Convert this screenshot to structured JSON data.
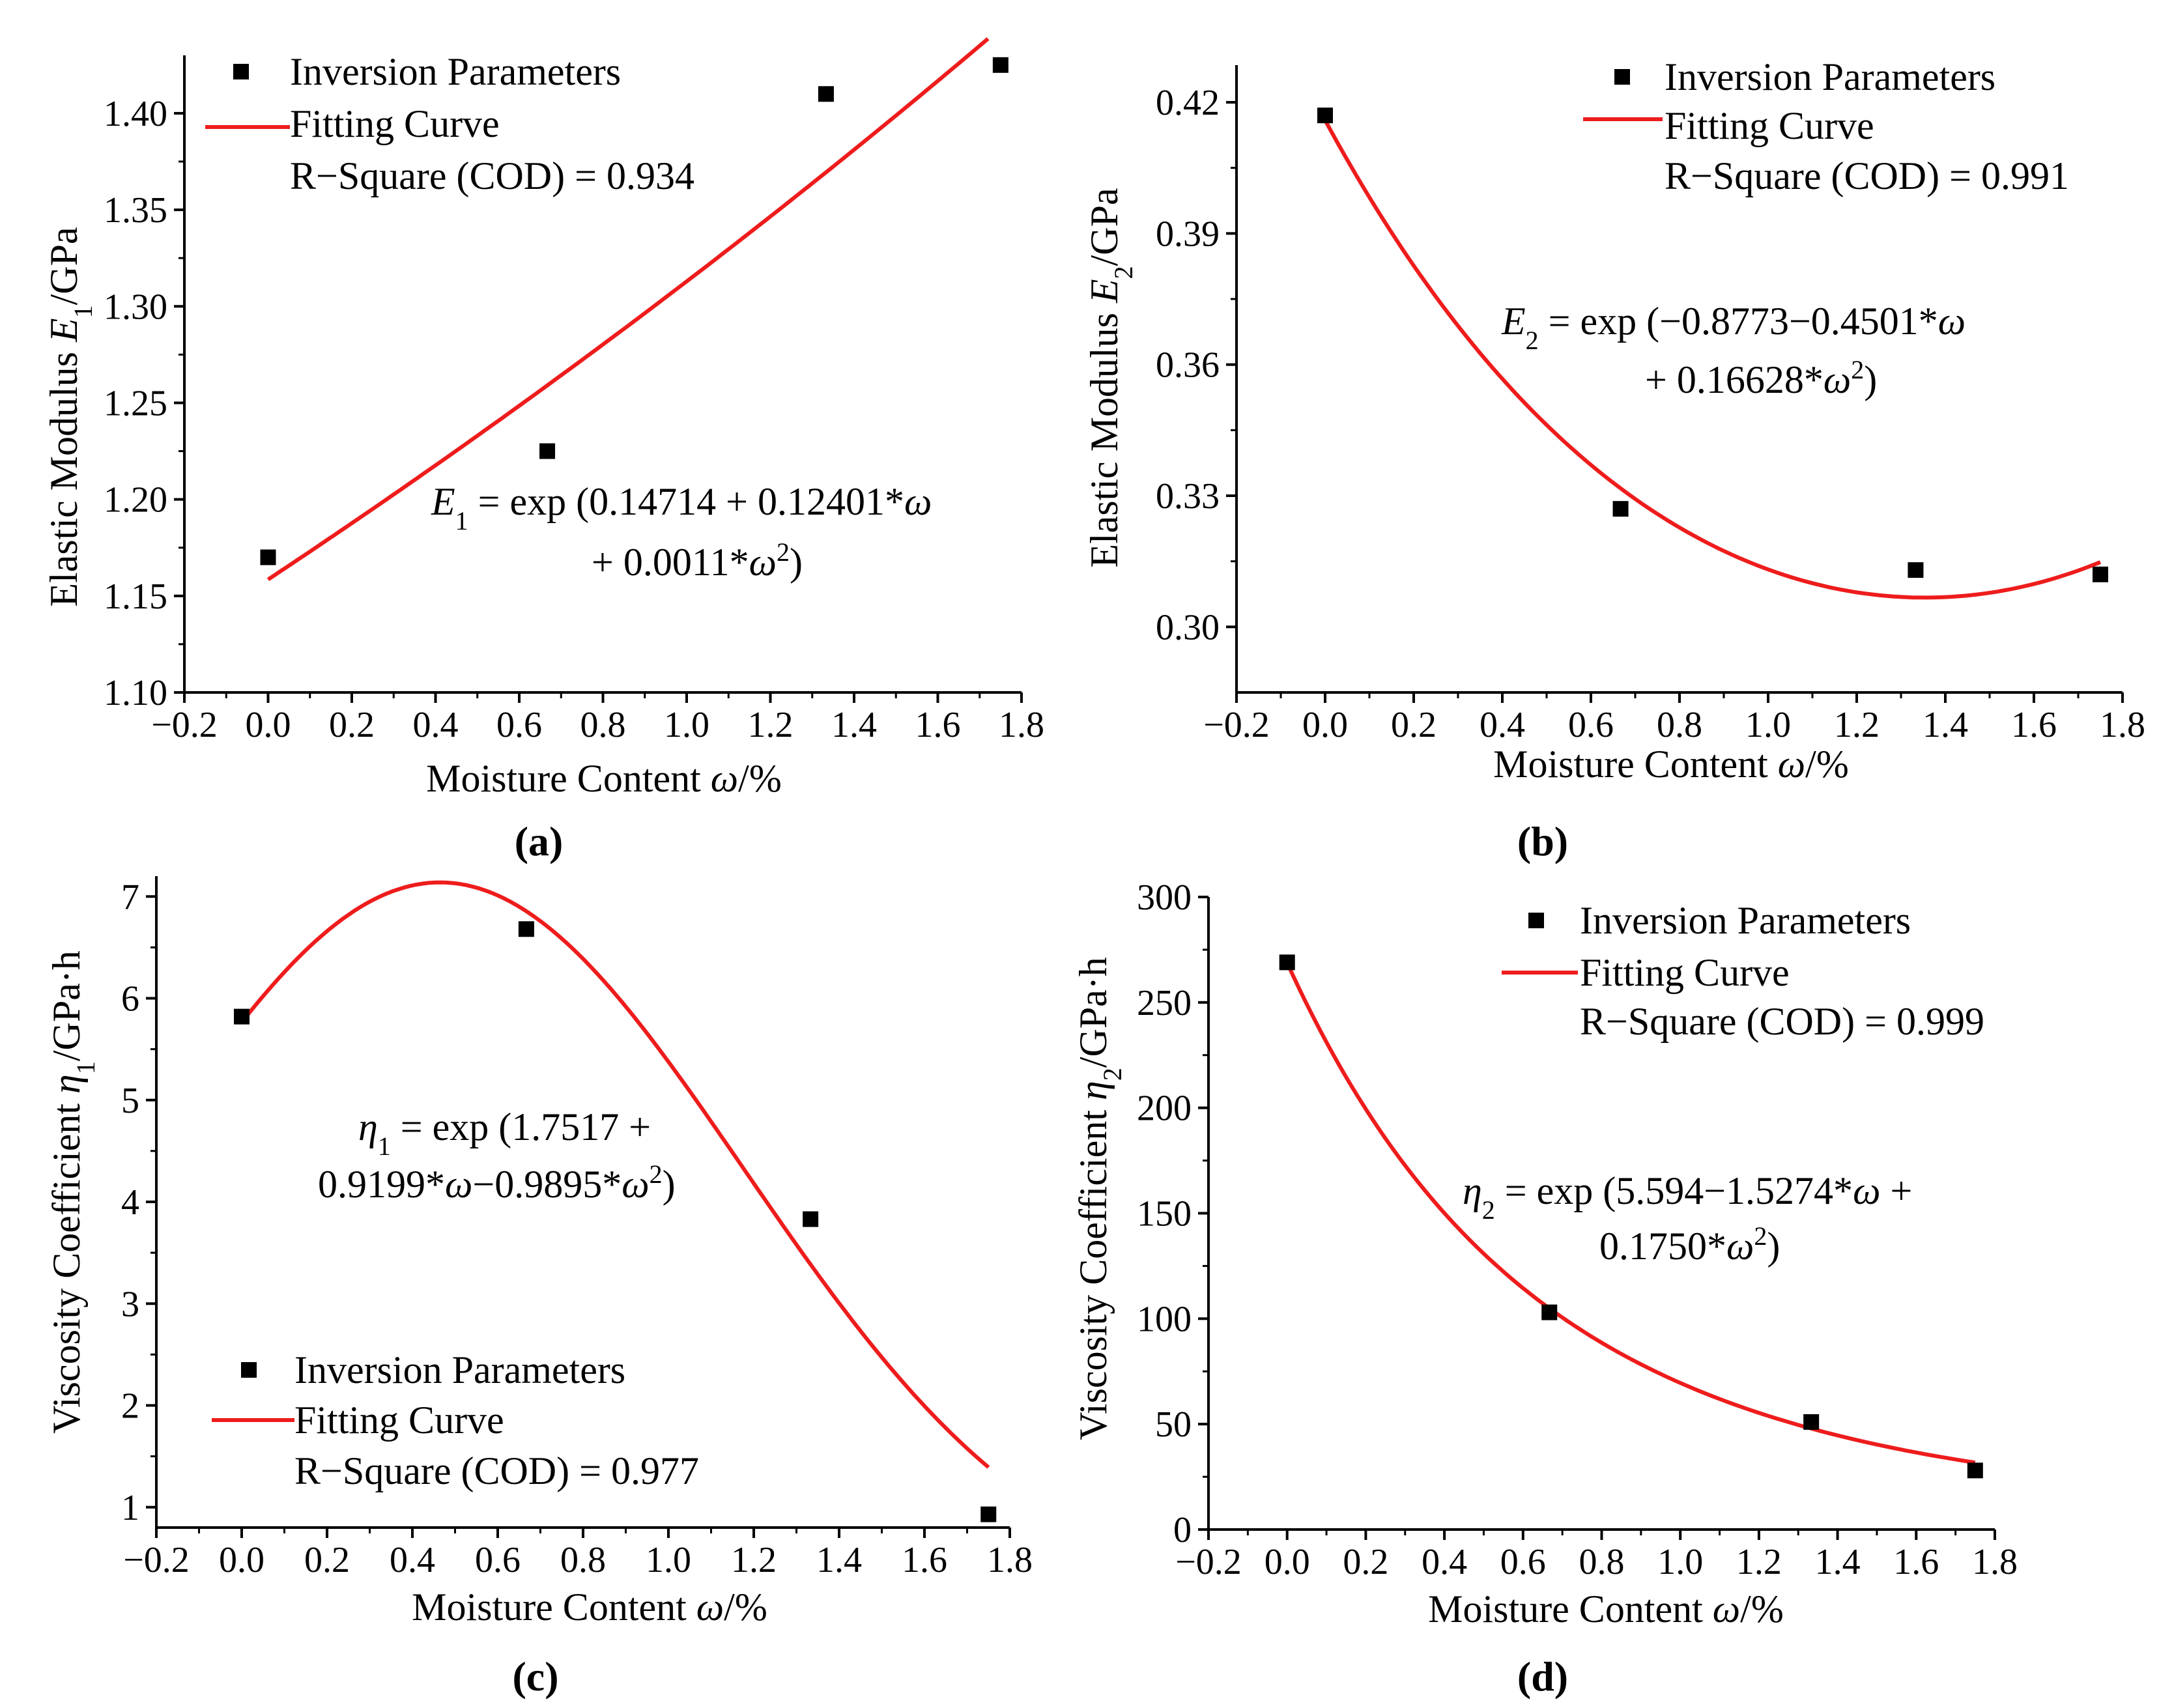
{
  "figure": {
    "background": "#ffffff",
    "curve_color": "#ee1c1c",
    "point_color": "#000000"
  },
  "chart_data": [
    {
      "id": "a",
      "type": "scatter",
      "caption": "(a)",
      "ylabel": "Elastic Modulus E1/GPa",
      "ylabel_parts": {
        "pre": "Elastic Modulus ",
        "var": "E",
        "sub": "1",
        "post": "/GPa"
      },
      "xlabel": "Moisture Content ω/%",
      "xlabel_parts": {
        "pre": "Moisture Content ",
        "var": "ω",
        "post": "/%"
      },
      "xlim": [
        -0.2,
        1.8
      ],
      "ylim": [
        1.1,
        1.43
      ],
      "xticks": [
        -0.2,
        0.0,
        0.2,
        0.4,
        0.6,
        0.8,
        1.0,
        1.2,
        1.4,
        1.6,
        1.8
      ],
      "xtick_labels": [
        "−0.2",
        "0.0",
        "0.2",
        "0.4",
        "0.6",
        "0.8",
        "1.0",
        "1.2",
        "1.4",
        "1.6",
        "1.8"
      ],
      "yticks": [
        1.1,
        1.15,
        1.2,
        1.25,
        1.3,
        1.35,
        1.4
      ],
      "ytick_labels": [
        "1.10",
        "1.15",
        "1.20",
        "1.25",
        "1.30",
        "1.35",
        "1.40"
      ],
      "series": [
        {
          "name": "Inversion Parameters",
          "kind": "points",
          "x": [
            0.0,
            0.667,
            1.333,
            1.75
          ],
          "y": [
            1.17,
            1.225,
            1.41,
            1.425
          ]
        },
        {
          "name": "Fitting Curve",
          "kind": "fit",
          "x_range": [
            0.0,
            1.72
          ],
          "coef": [
            0.14714,
            0.12401,
            0.0011
          ]
        }
      ],
      "legend": {
        "points": "Inversion Parameters",
        "curve": "Fitting Curve",
        "r2": "R−Square (COD) = 0.934",
        "placement": "top-left"
      },
      "equation": {
        "line1": {
          "var": "E",
          "sub": "1",
          "rest": " = exp (0.14714 + 0.12401*",
          "omega": "ω"
        },
        "line2": {
          "pre": "+ 0.0011*",
          "omega": "ω",
          "sup": "2",
          "post": ")"
        }
      }
    },
    {
      "id": "b",
      "type": "scatter",
      "caption": "(b)",
      "ylabel": "Elastic Modulus E2/GPa",
      "ylabel_parts": {
        "pre": "Elastic Modulus ",
        "var": "E",
        "sub": "2",
        "post": "/GPa"
      },
      "xlabel": "Moisture Content ω/%",
      "xlabel_parts": {
        "pre": "Moisture Content ",
        "var": "ω",
        "post": "/%"
      },
      "xlim": [
        -0.2,
        1.8
      ],
      "ylim": [
        0.285,
        0.4285
      ],
      "xticks": [
        -0.2,
        0.0,
        0.2,
        0.4,
        0.6,
        0.8,
        1.0,
        1.2,
        1.4,
        1.6,
        1.8
      ],
      "xtick_labels": [
        "−0.2",
        "0.0",
        "0.2",
        "0.4",
        "0.6",
        "0.8",
        "1.0",
        "1.2",
        "1.4",
        "1.6",
        "1.8"
      ],
      "yticks": [
        0.3,
        0.33,
        0.36,
        0.39,
        0.42
      ],
      "ytick_labels": [
        "0.30",
        "0.33",
        "0.36",
        "0.39",
        "0.42"
      ],
      "series": [
        {
          "name": "Inversion Parameters",
          "kind": "points",
          "x": [
            0.0,
            0.667,
            1.333,
            1.75
          ],
          "y": [
            0.417,
            0.327,
            0.313,
            0.312
          ]
        },
        {
          "name": "Fitting Curve",
          "kind": "fit",
          "x_range": [
            0.0,
            1.75
          ],
          "coef": [
            -0.8773,
            -0.4501,
            0.16628
          ]
        }
      ],
      "legend": {
        "points": "Inversion Parameters",
        "curve": "Fitting Curve",
        "r2": "R−Square (COD) = 0.991",
        "placement": "top-right"
      },
      "equation": {
        "line1": {
          "var": "E",
          "sub": "2",
          "rest": " = exp (−0.8773−0.4501*",
          "omega": "ω"
        },
        "line2": {
          "pre": "+ 0.16628*",
          "omega": "ω",
          "sup": "2",
          "post": ")"
        }
      }
    },
    {
      "id": "c",
      "type": "scatter",
      "caption": "(c)",
      "ylabel": "Viscosity Coefficient η1/GPa·h",
      "ylabel_parts": {
        "pre": "Viscosity Coefficient ",
        "var": "η",
        "sub": "1",
        "post": "/GPa·h"
      },
      "xlabel": "Moisture Content ω/%",
      "xlabel_parts": {
        "pre": "Moisture Content ",
        "var": "ω",
        "post": "/%"
      },
      "xlim": [
        -0.2,
        1.8
      ],
      "ylim": [
        0.8,
        7.2
      ],
      "xticks": [
        -0.2,
        0.0,
        0.2,
        0.4,
        0.6,
        0.8,
        1.0,
        1.2,
        1.4,
        1.6,
        1.8
      ],
      "xtick_labels": [
        "−0.2",
        "0.0",
        "0.2",
        "0.4",
        "0.6",
        "0.8",
        "1.0",
        "1.2",
        "1.4",
        "1.6",
        "1.8"
      ],
      "yticks": [
        1,
        2,
        3,
        4,
        5,
        6,
        7
      ],
      "ytick_labels": [
        "1",
        "2",
        "3",
        "4",
        "5",
        "6",
        "7"
      ],
      "series": [
        {
          "name": "Inversion Parameters",
          "kind": "points",
          "x": [
            0.0,
            0.667,
            1.333,
            1.75
          ],
          "y": [
            5.82,
            6.68,
            3.83,
            0.93
          ]
        },
        {
          "name": "Fitting Curve",
          "kind": "fit",
          "x_range": [
            0.0,
            1.75
          ],
          "coef": [
            1.7517,
            0.9199,
            -0.9895
          ]
        }
      ],
      "legend": {
        "points": "Inversion Parameters",
        "curve": "Fitting Curve",
        "r2": "R−Square (COD) = 0.977",
        "placement": "bottom-left"
      },
      "equation": {
        "line1": {
          "var": "η",
          "sub": "1",
          "rest": " = exp (1.7517 +"
        },
        "line2": {
          "pre": "0.9199*",
          "omega": "ω",
          "mid": "−0.9895*",
          "omega2": "ω",
          "sup": "2",
          "post": ")"
        }
      }
    },
    {
      "id": "d",
      "type": "scatter",
      "caption": "(d)",
      "ylabel": "Viscosity Coefficient η2/GPa·h",
      "ylabel_parts": {
        "pre": "Viscosity Coefficient ",
        "var": "η",
        "sub": "2",
        "post": "/GPa·h"
      },
      "xlabel": "Moisture Content ω/%",
      "xlabel_parts": {
        "pre": "Moisture Content ",
        "var": "ω",
        "post": "/%"
      },
      "xlim": [
        -0.2,
        1.8
      ],
      "ylim": [
        0,
        300
      ],
      "xticks": [
        -0.2,
        0.0,
        0.2,
        0.4,
        0.6,
        0.8,
        1.0,
        1.2,
        1.4,
        1.6,
        1.8
      ],
      "xtick_labels": [
        "−0.2",
        "0.0",
        "0.2",
        "0.4",
        "0.6",
        "0.8",
        "1.0",
        "1.2",
        "1.4",
        "1.6",
        "1.8"
      ],
      "yticks": [
        0,
        50,
        100,
        150,
        200,
        250,
        300
      ],
      "ytick_labels": [
        "0",
        "50",
        "100",
        "150",
        "200",
        "250",
        "300"
      ],
      "series": [
        {
          "name": "Inversion Parameters",
          "kind": "points",
          "x": [
            0.0,
            0.667,
            1.333,
            1.75
          ],
          "y": [
            269,
            103,
            51,
            28
          ]
        },
        {
          "name": "Fitting Curve",
          "kind": "fit",
          "x_range": [
            0.0,
            1.75
          ],
          "coef": [
            5.594,
            -1.5274,
            0.175
          ]
        }
      ],
      "legend": {
        "points": "Inversion Parameters",
        "curve": "Fitting Curve",
        "r2": "R−Square (COD) = 0.999",
        "placement": "top-right"
      },
      "equation": {
        "line1": {
          "var": "η",
          "sub": "2",
          "rest": " = exp (5.594−1.5274*",
          "omega": "ω",
          "tail": " +"
        },
        "line2": {
          "pre": "0.1750*",
          "omega": "ω",
          "sup": "2",
          "post": ")"
        }
      }
    }
  ]
}
